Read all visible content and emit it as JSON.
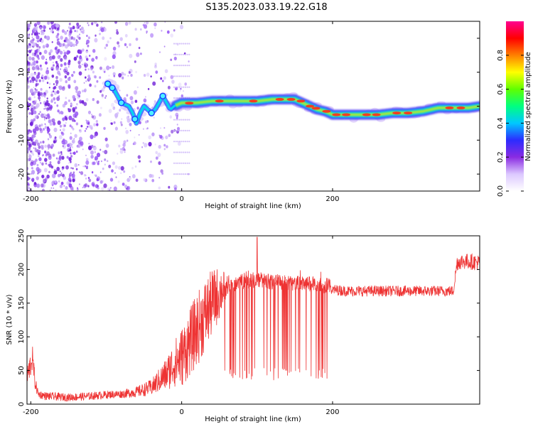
{
  "title": "S135.2023.033.19.22.G18",
  "chart_data": [
    {
      "type": "heatmap",
      "xlabel": "Height of straight line (km)",
      "ylabel": "Frequency (Hz)",
      "xlim": [
        -205,
        395
      ],
      "ylim": [
        -25,
        25
      ],
      "xticks": [
        -200,
        0,
        200
      ],
      "yticks": [
        -20,
        -10,
        0,
        10,
        20
      ],
      "colorbar": {
        "label": "Normalized spectral amplitude",
        "range": [
          0,
          1
        ],
        "ticks": [
          0.0,
          0.2,
          0.4,
          0.6,
          0.8
        ],
        "colors": [
          "#ffffff",
          "#dcc8ff",
          "#8a2be2",
          "#2c2cff",
          "#00c8ff",
          "#00ff80",
          "#60ff00",
          "#ffff00",
          "#ff8000",
          "#ff0000",
          "#ff0090"
        ]
      },
      "ridge": {
        "x": [
          -105,
          -100,
          -95,
          -90,
          -85,
          -80,
          -75,
          -70,
          -65,
          -60,
          -55,
          -50,
          -45,
          -40,
          -35,
          -30,
          -25,
          -20,
          -15,
          -10,
          0,
          10,
          20,
          40,
          60,
          80,
          100,
          120,
          140,
          150,
          160,
          170,
          180,
          190,
          200,
          220,
          240,
          260,
          280,
          300,
          320,
          340,
          360,
          380,
          395
        ],
        "freq": [
          6,
          7,
          6,
          5,
          3,
          1,
          0.5,
          0,
          -2,
          -5,
          -2,
          0,
          -1,
          -2,
          -1,
          1,
          3,
          1,
          -1,
          0,
          1,
          1,
          1,
          1.5,
          1.5,
          1.5,
          1.5,
          2,
          2,
          2,
          1,
          0,
          -1,
          -1.5,
          -2.5,
          -2.5,
          -2.5,
          -2.5,
          -2,
          -2,
          -1.5,
          -0.5,
          -0.5,
          -0.5,
          0
        ]
      }
    },
    {
      "type": "line",
      "xlabel": "Height of straight line (km)",
      "ylabel": "SNR (10 * v/v)",
      "xlim": [
        -205,
        395
      ],
      "ylim": [
        0,
        250
      ],
      "xticks": [
        -200,
        0,
        200
      ],
      "yticks": [
        0,
        50,
        100,
        150,
        200,
        250
      ],
      "color": "#ee3333",
      "series": {
        "x": [
          -205,
          -200,
          -198,
          -196,
          -194,
          -190,
          -180,
          -150,
          -120,
          -100,
          -80,
          -60,
          -40,
          -30,
          -20,
          -10,
          0,
          10,
          20,
          30,
          40,
          50,
          60,
          80,
          100,
          120,
          140,
          160,
          180,
          195,
          200,
          220,
          240,
          260,
          280,
          300,
          320,
          340,
          360,
          365,
          370,
          380,
          395
        ],
        "base": [
          40,
          60,
          70,
          50,
          30,
          15,
          12,
          10,
          12,
          14,
          15,
          18,
          25,
          35,
          45,
          60,
          70,
          90,
          110,
          130,
          150,
          165,
          178,
          182,
          185,
          182,
          180,
          178,
          178,
          176,
          170,
          168,
          168,
          168,
          168,
          168,
          168,
          168,
          168,
          210,
          212,
          212,
          210
        ],
        "spread": [
          15,
          20,
          20,
          15,
          10,
          6,
          6,
          6,
          6,
          6,
          6,
          8,
          12,
          18,
          25,
          35,
          45,
          50,
          55,
          55,
          50,
          40,
          15,
          12,
          12,
          12,
          12,
          12,
          12,
          12,
          8,
          8,
          8,
          8,
          8,
          8,
          8,
          8,
          8,
          12,
          12,
          12,
          12
        ],
        "dropout_range": [
          55,
          195
        ],
        "dropout_min": 35
      }
    }
  ]
}
